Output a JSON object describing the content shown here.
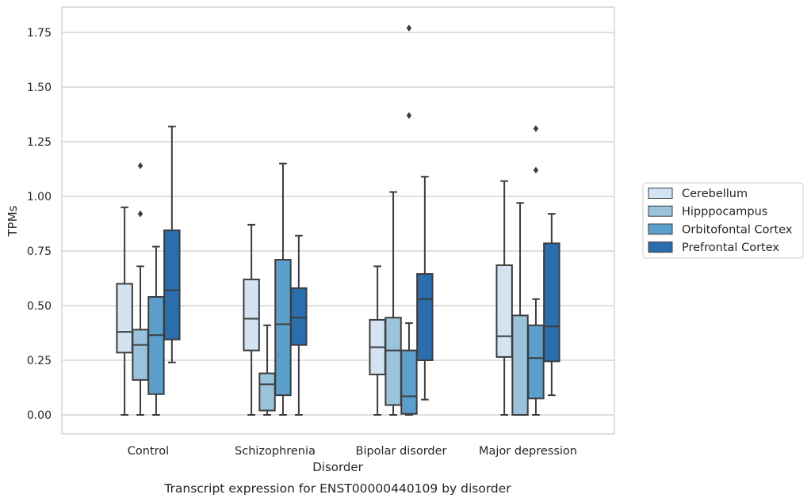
{
  "chart_data": {
    "type": "box",
    "xlabel": "Disorder",
    "ylabel": "TPMs",
    "caption": "Transcript expression for ENST00000440109 by disorder",
    "ylim": [
      -0.09,
      1.86
    ],
    "yticks": [
      0.0,
      0.25,
      0.5,
      0.75,
      1.0,
      1.25,
      1.5,
      1.75
    ],
    "ytick_labels": [
      "0.00",
      "0.25",
      "0.50",
      "0.75",
      "1.00",
      "1.25",
      "1.50",
      "1.75"
    ],
    "grid": true,
    "legend_placement": "outside-right",
    "categories": [
      "Control",
      "Schizophrenia",
      "Bipolar disorder",
      "Major depression"
    ],
    "series": [
      {
        "name": "Cerebellum",
        "color": "#d3e3f2",
        "boxes": [
          {
            "whislo": 0.0,
            "q1": 0.285,
            "med": 0.38,
            "q3": 0.6,
            "whishi": 0.95,
            "fliers": []
          },
          {
            "whislo": 0.0,
            "q1": 0.295,
            "med": 0.44,
            "q3": 0.62,
            "whishi": 0.87,
            "fliers": []
          },
          {
            "whislo": 0.0,
            "q1": 0.185,
            "med": 0.31,
            "q3": 0.435,
            "whishi": 0.68,
            "fliers": []
          },
          {
            "whislo": 0.0,
            "q1": 0.265,
            "med": 0.36,
            "q3": 0.685,
            "whishi": 1.07,
            "fliers": []
          }
        ]
      },
      {
        "name": "Hipppocampus",
        "color": "#9ac3dc",
        "boxes": [
          {
            "whislo": 0.0,
            "q1": 0.16,
            "med": 0.32,
            "q3": 0.39,
            "whishi": 0.68,
            "fliers": [
              0.92,
              1.14
            ]
          },
          {
            "whislo": 0.0,
            "q1": 0.02,
            "med": 0.14,
            "q3": 0.19,
            "whishi": 0.41,
            "fliers": []
          },
          {
            "whislo": 0.0,
            "q1": 0.045,
            "med": 0.295,
            "q3": 0.445,
            "whishi": 1.02,
            "fliers": []
          },
          {
            "whislo": 0.0,
            "q1": 0.0,
            "med": 0.0,
            "q3": 0.455,
            "whishi": 0.97,
            "fliers": []
          }
        ]
      },
      {
        "name": "Orbitofontal Cortex",
        "color": "#5b9fcc",
        "boxes": [
          {
            "whislo": 0.0,
            "q1": 0.095,
            "med": 0.365,
            "q3": 0.54,
            "whishi": 0.77,
            "fliers": []
          },
          {
            "whislo": 0.0,
            "q1": 0.09,
            "med": 0.415,
            "q3": 0.71,
            "whishi": 1.15,
            "fliers": []
          },
          {
            "whislo": 0.0,
            "q1": 0.005,
            "med": 0.085,
            "q3": 0.295,
            "whishi": 0.42,
            "fliers": [
              1.37,
              1.77
            ]
          },
          {
            "whislo": 0.0,
            "q1": 0.075,
            "med": 0.26,
            "q3": 0.41,
            "whishi": 0.53,
            "fliers": [
              1.12,
              1.31
            ]
          }
        ]
      },
      {
        "name": "Prefrontal Cortex",
        "color": "#2a6ead",
        "boxes": [
          {
            "whislo": 0.24,
            "q1": 0.345,
            "med": 0.57,
            "q3": 0.845,
            "whishi": 1.32,
            "fliers": []
          },
          {
            "whislo": 0.0,
            "q1": 0.32,
            "med": 0.445,
            "q3": 0.58,
            "whishi": 0.82,
            "fliers": []
          },
          {
            "whislo": 0.07,
            "q1": 0.25,
            "med": 0.53,
            "q3": 0.645,
            "whishi": 1.09,
            "fliers": []
          },
          {
            "whislo": 0.09,
            "q1": 0.245,
            "med": 0.405,
            "q3": 0.785,
            "whishi": 0.92,
            "fliers": []
          }
        ]
      }
    ]
  }
}
